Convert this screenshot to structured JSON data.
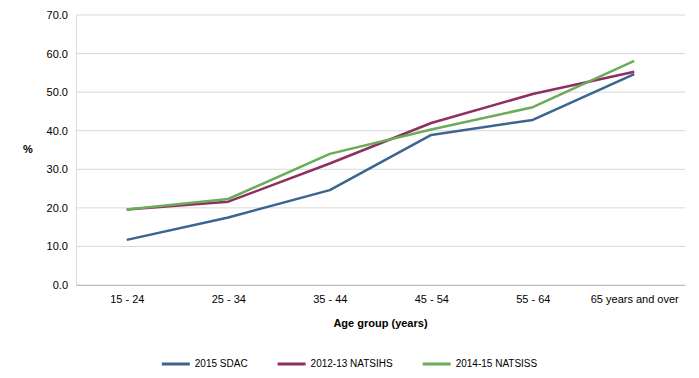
{
  "chart_data": {
    "type": "line",
    "x_label": "Age group (years)",
    "y_label": "%",
    "categories": [
      "15 - 24",
      "25 - 34",
      "35 - 44",
      "45 - 54",
      "55 - 64",
      "65 years and over"
    ],
    "series": [
      {
        "name": "2015 SDAC",
        "color": "#3b6591",
        "values": [
          11.7,
          17.5,
          24.6,
          38.9,
          42.8,
          54.7
        ]
      },
      {
        "name": "2012-13 NATSIHS",
        "color": "#8e2f60",
        "values": [
          19.6,
          21.6,
          31.5,
          42.0,
          49.5,
          55.3
        ]
      },
      {
        "name": "2014-15 NATSISS",
        "color": "#6aac58",
        "values": [
          19.6,
          22.3,
          34.0,
          40.3,
          46.1,
          58.1
        ]
      }
    ],
    "ylim": [
      0,
      70
    ],
    "yticks": [
      {
        "value": 0,
        "label": "0.0"
      },
      {
        "value": 10,
        "label": "10.0"
      },
      {
        "value": 20,
        "label": "20.0"
      },
      {
        "value": 30,
        "label": "30.0"
      },
      {
        "value": 40,
        "label": "40.0"
      },
      {
        "value": 50,
        "label": "50.0"
      },
      {
        "value": 60,
        "label": "60.0"
      },
      {
        "value": 70,
        "label": "70.0"
      }
    ],
    "grid": true,
    "legend": "bottom"
  }
}
